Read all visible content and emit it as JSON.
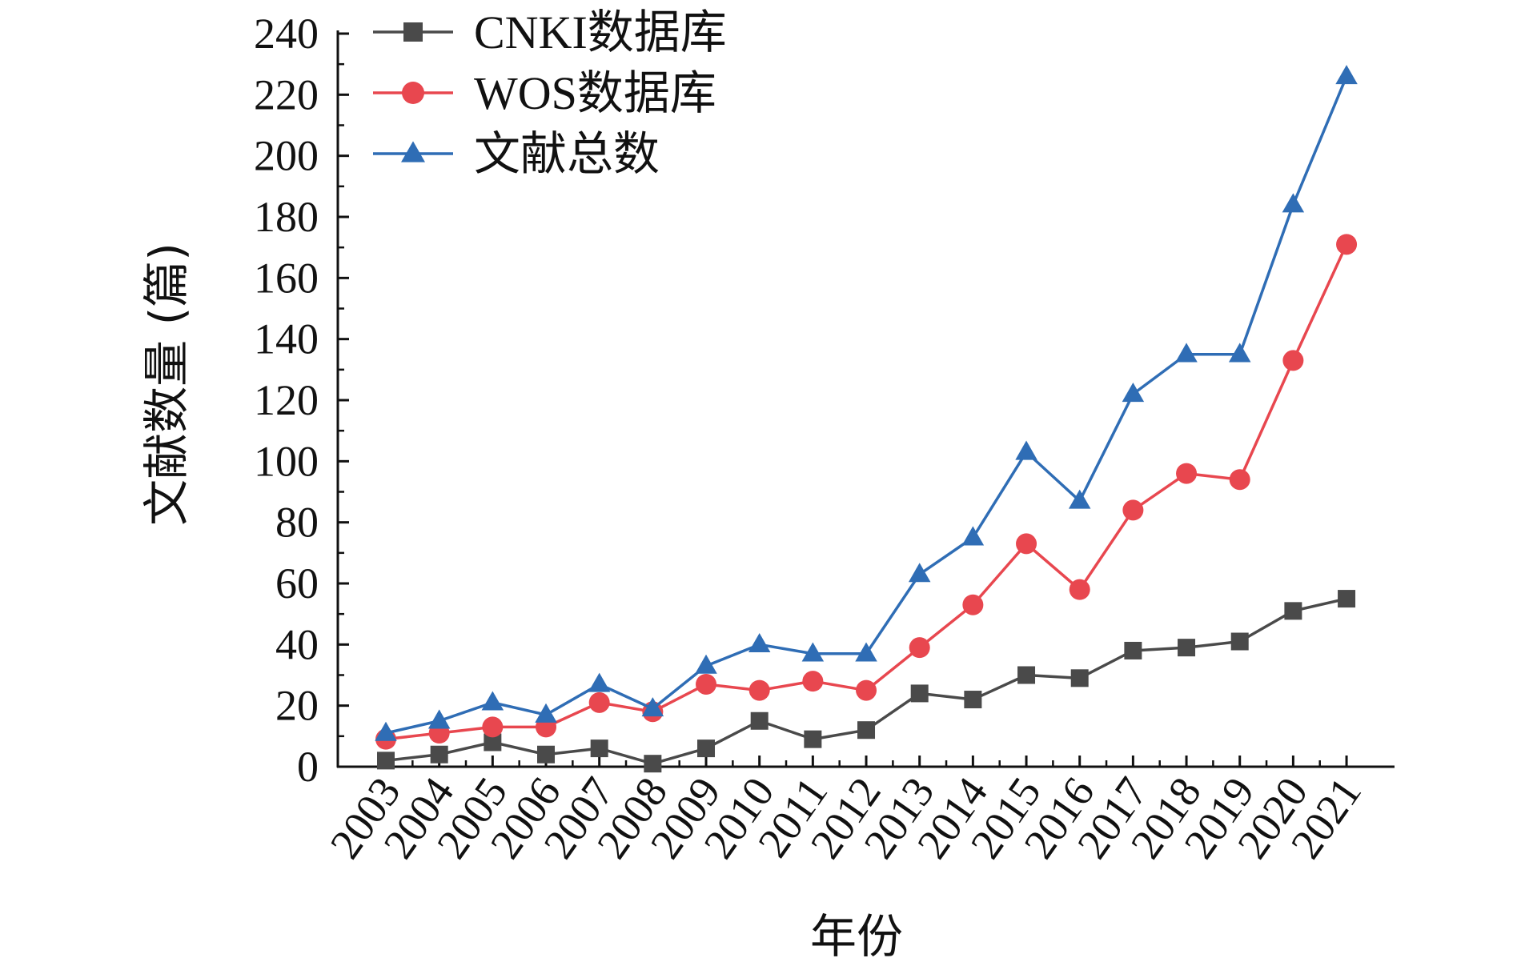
{
  "chart_data": {
    "type": "line",
    "categories": [
      "2003",
      "2004",
      "2005",
      "2006",
      "2007",
      "2008",
      "2009",
      "2010",
      "2011",
      "2012",
      "2013",
      "2014",
      "2015",
      "2016",
      "2017",
      "2018",
      "2019",
      "2020",
      "2021"
    ],
    "series": [
      {
        "name": "CNKI数据库",
        "color": "#4a4a4a",
        "marker": "square",
        "values": [
          2,
          4,
          8,
          4,
          6,
          1,
          6,
          15,
          9,
          12,
          24,
          22,
          30,
          29,
          38,
          39,
          41,
          51,
          55
        ]
      },
      {
        "name": "WOS数据库",
        "color": "#e8474f",
        "marker": "circle",
        "values": [
          9,
          11,
          13,
          13,
          21,
          18,
          27,
          25,
          28,
          25,
          39,
          53,
          73,
          58,
          84,
          96,
          94,
          133,
          171
        ]
      },
      {
        "name": "文献总数",
        "color": "#2f6db5",
        "marker": "triangle",
        "values": [
          11,
          15,
          21,
          17,
          27,
          19,
          33,
          40,
          37,
          37,
          63,
          75,
          103,
          87,
          122,
          135,
          135,
          184,
          226
        ]
      }
    ],
    "xlabel": "年份",
    "ylabel": "文献数量 (篇)",
    "ylim": [
      0,
      240
    ],
    "yticks": [
      "0",
      "20",
      "40",
      "60",
      "80",
      "100",
      "120",
      "140",
      "160",
      "180",
      "200",
      "220",
      "240"
    ],
    "grid": false,
    "legend": "top-left"
  }
}
